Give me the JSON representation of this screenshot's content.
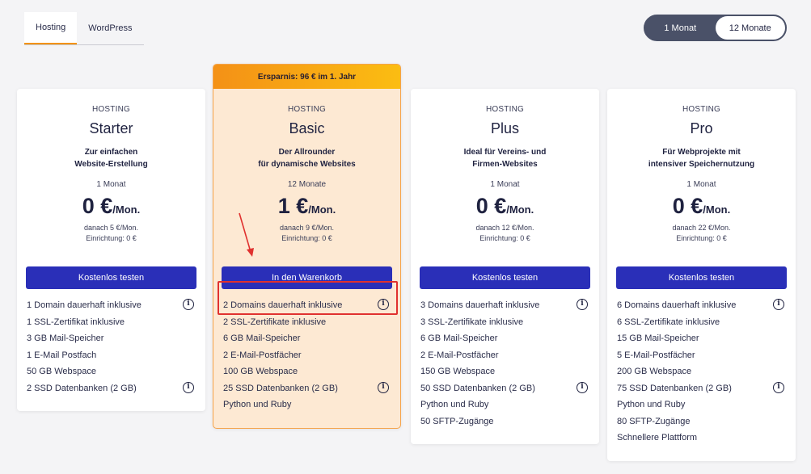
{
  "tabs": [
    {
      "label": "Hosting",
      "active": true
    },
    {
      "label": "WordPress",
      "active": false
    }
  ],
  "period_toggle": {
    "options": [
      "1 Monat",
      "12 Monate"
    ],
    "selected": "12 Monate"
  },
  "colors": {
    "accent": "#f39200",
    "button": "#2a2fb8",
    "highlight_bg": "#fde9d3",
    "annotation": "#e0312f"
  },
  "plans": [
    {
      "type": "HOSTING",
      "name": "Starter",
      "description": "Zur einfachen\nWebsite-Erstellung",
      "period": "1 Monat",
      "price": "0 €",
      "price_unit": "/Mon.",
      "fine_print": "danach 5 €/Mon.\nEinrichtung: 0 €",
      "cta": "Kostenlos testen",
      "features": [
        {
          "text": "1 Domain dauerhaft inklusive",
          "info": true
        },
        {
          "text": "1 SSL-Zertifikat inklusive",
          "info": false
        },
        {
          "text": "3 GB Mail-Speicher",
          "info": false
        },
        {
          "text": "1 E-Mail Postfach",
          "info": false
        },
        {
          "text": "50 GB Webspace",
          "info": false
        },
        {
          "text": "2 SSD Datenbanken (2 GB)",
          "info": true
        }
      ]
    },
    {
      "type": "HOSTING",
      "name": "Basic",
      "badge": "Ersparnis: 96 € im 1. Jahr",
      "description": "Der Allrounder\nfür dynamische Websites",
      "period": "12 Monate",
      "price": "1 €",
      "price_unit": "/Mon.",
      "fine_print": "danach 9 €/Mon.\nEinrichtung: 0 €",
      "cta": "In den Warenkorb",
      "features": [
        {
          "text": "2 Domains dauerhaft inklusive",
          "info": true
        },
        {
          "text": "2 SSL-Zertifikate inklusive",
          "info": false
        },
        {
          "text": "6 GB Mail-Speicher",
          "info": false
        },
        {
          "text": "2 E-Mail-Postfächer",
          "info": false
        },
        {
          "text": "100 GB Webspace",
          "info": false
        },
        {
          "text": "25 SSD Datenbanken (2 GB)",
          "info": true
        },
        {
          "text": "Python und Ruby",
          "info": false
        }
      ]
    },
    {
      "type": "HOSTING",
      "name": "Plus",
      "description": "Ideal für Vereins- und\nFirmen-Websites",
      "period": "1 Monat",
      "price": "0 €",
      "price_unit": "/Mon.",
      "fine_print": "danach 12 €/Mon.\nEinrichtung: 0 €",
      "cta": "Kostenlos testen",
      "features": [
        {
          "text": "3 Domains dauerhaft inklusive",
          "info": true
        },
        {
          "text": "3 SSL-Zertifikate inklusive",
          "info": false
        },
        {
          "text": "6 GB Mail-Speicher",
          "info": false
        },
        {
          "text": "2 E-Mail-Postfächer",
          "info": false
        },
        {
          "text": "150 GB Webspace",
          "info": false
        },
        {
          "text": "50 SSD Datenbanken (2 GB)",
          "info": true
        },
        {
          "text": "Python und Ruby",
          "info": false
        },
        {
          "text": "50 SFTP-Zugänge",
          "info": false
        }
      ]
    },
    {
      "type": "HOSTING",
      "name": "Pro",
      "description": "Für Webprojekte mit\nintensiver Speichernutzung",
      "period": "1 Monat",
      "price": "0 €",
      "price_unit": "/Mon.",
      "fine_print": "danach 22 €/Mon.\nEinrichtung: 0 €",
      "cta": "Kostenlos testen",
      "features": [
        {
          "text": "6 Domains dauerhaft inklusive",
          "info": true
        },
        {
          "text": "6 SSL-Zertifikate inklusive",
          "info": false
        },
        {
          "text": "15 GB Mail-Speicher",
          "info": false
        },
        {
          "text": "5 E-Mail-Postfächer",
          "info": false
        },
        {
          "text": "200 GB Webspace",
          "info": false
        },
        {
          "text": "75 SSD Datenbanken (2 GB)",
          "info": true
        },
        {
          "text": "Python und Ruby",
          "info": false
        },
        {
          "text": "80 SFTP-Zugänge",
          "info": false
        },
        {
          "text": "Schnellere Plattform",
          "info": false
        }
      ]
    }
  ]
}
